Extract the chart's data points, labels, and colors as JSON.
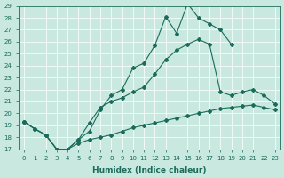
{
  "xlabel": "Humidex (Indice chaleur)",
  "xlim": [
    -0.5,
    23.5
  ],
  "ylim": [
    17,
    29
  ],
  "xticks": [
    0,
    1,
    2,
    3,
    4,
    5,
    6,
    7,
    8,
    9,
    10,
    11,
    12,
    13,
    14,
    15,
    16,
    17,
    18,
    19,
    20,
    21,
    22,
    23
  ],
  "yticks": [
    17,
    18,
    19,
    20,
    21,
    22,
    23,
    24,
    25,
    26,
    27,
    28,
    29
  ],
  "background_color": "#c8e8e0",
  "grid_color": "#b0d8d0",
  "line_color": "#1a6b5a",
  "line1_x": [
    0,
    1,
    2,
    3,
    4,
    5,
    6,
    7,
    8,
    9,
    10,
    11,
    12,
    13,
    14,
    15,
    16,
    17,
    18,
    19
  ],
  "line1_y": [
    19.3,
    18.7,
    18.2,
    17.0,
    17.0,
    17.8,
    18.5,
    20.3,
    21.5,
    22.0,
    23.8,
    24.2,
    25.7,
    28.1,
    26.7,
    29.2,
    28.0,
    27.5,
    27.0,
    25.8
  ],
  "line2_x": [
    0,
    1,
    2,
    3,
    4,
    5,
    6,
    7,
    8,
    9,
    10,
    11,
    12,
    13,
    14,
    15,
    16,
    17,
    18,
    19,
    20,
    21,
    22,
    23
  ],
  "line2_y": [
    19.3,
    18.7,
    18.2,
    17.0,
    17.0,
    17.8,
    19.2,
    20.5,
    21.0,
    21.3,
    21.8,
    22.2,
    23.3,
    24.5,
    25.3,
    25.8,
    26.2,
    25.8,
    21.8,
    21.5,
    21.8,
    22.0,
    21.5,
    20.8
  ],
  "line3_x": [
    0,
    1,
    2,
    3,
    4,
    5,
    6,
    7,
    8,
    9,
    10,
    11,
    12,
    13,
    14,
    15,
    16,
    17,
    18,
    19,
    20,
    21,
    22,
    23
  ],
  "line3_y": [
    19.3,
    18.7,
    18.2,
    17.0,
    17.0,
    17.5,
    17.8,
    18.0,
    18.2,
    18.5,
    18.8,
    19.0,
    19.2,
    19.4,
    19.6,
    19.8,
    20.0,
    20.2,
    20.4,
    20.5,
    20.6,
    20.7,
    20.5,
    20.3
  ]
}
